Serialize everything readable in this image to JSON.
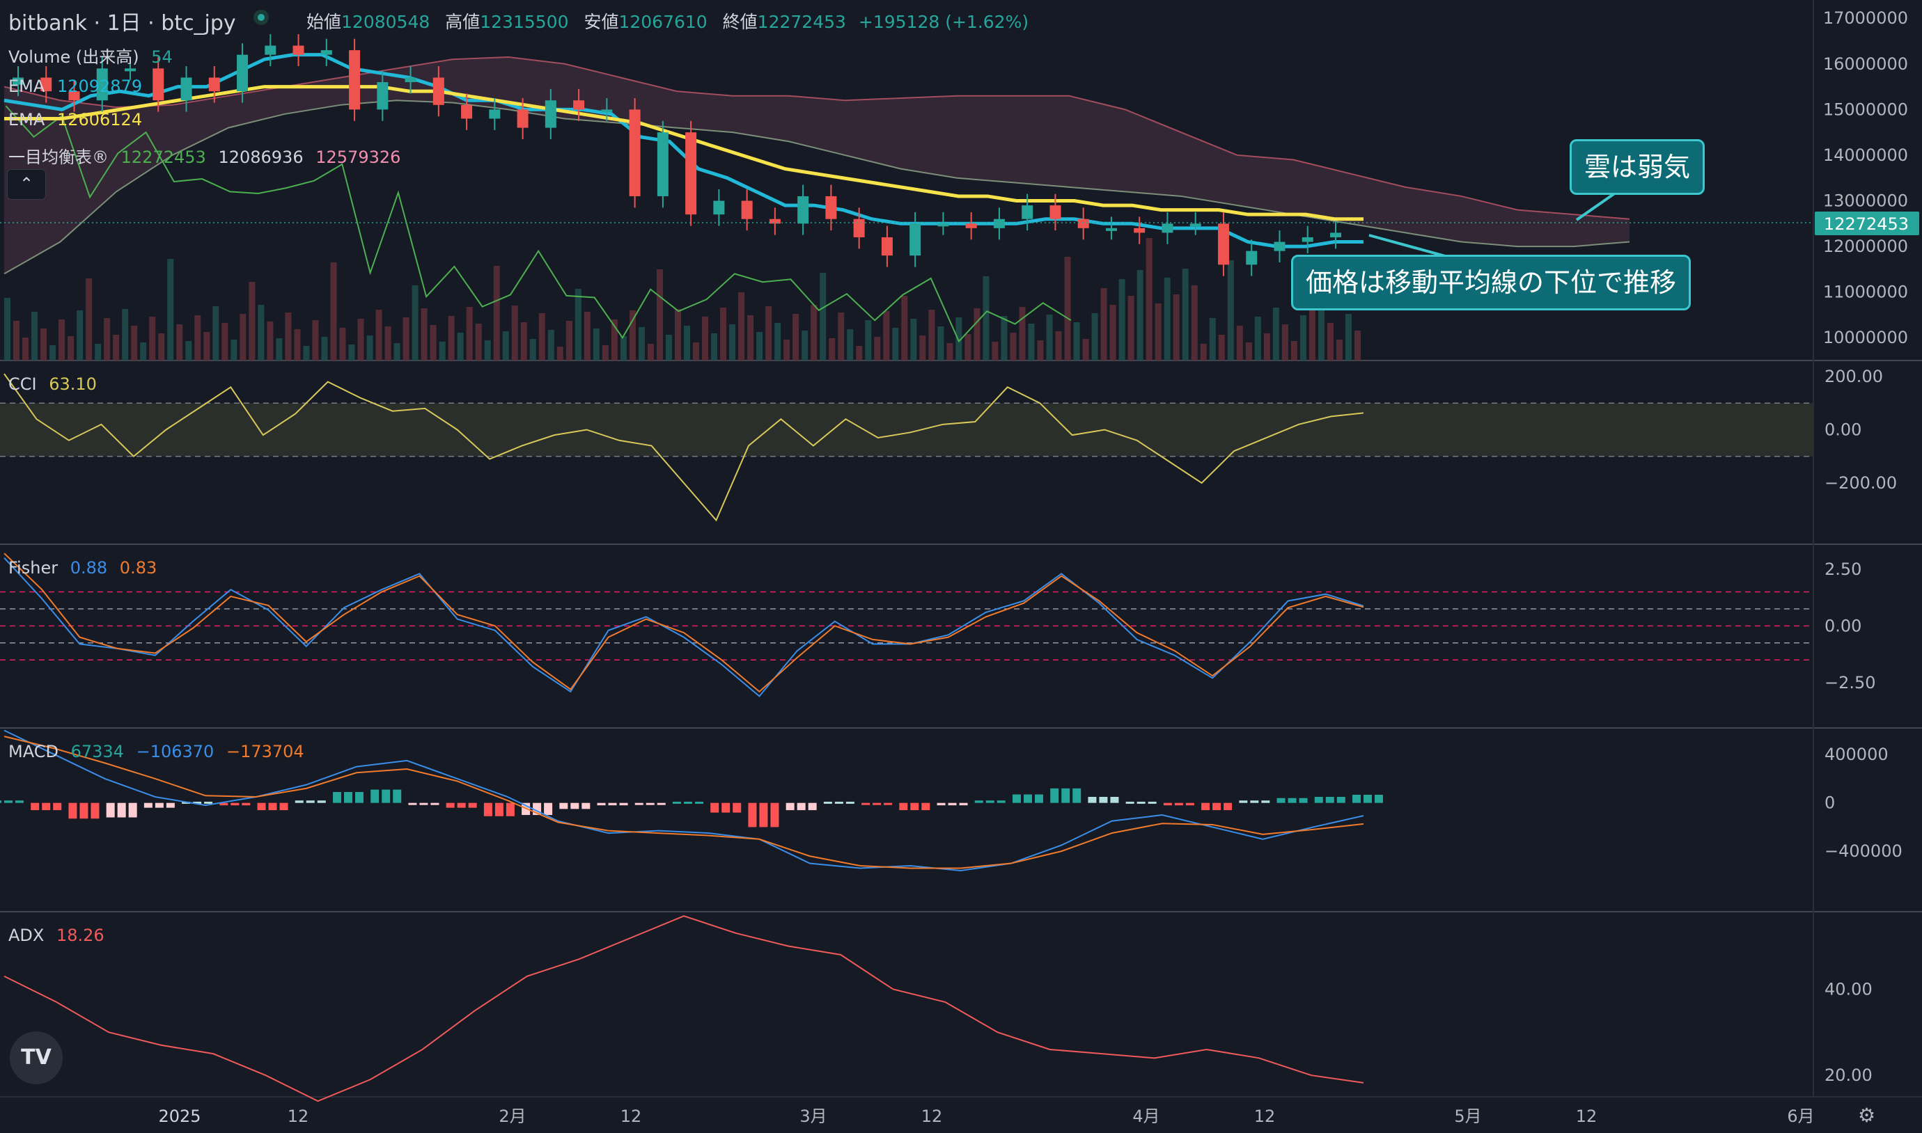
{
  "header": {
    "title": "bitbank · 1日 · btc_jpy",
    "open_label": "始値",
    "open": "12080548",
    "high_label": "高値",
    "high": "12315500",
    "low_label": "安値",
    "low": "12067610",
    "close_label": "終値",
    "close": "12272453",
    "change": "+195128 (+1.62%)"
  },
  "legend": {
    "volume": {
      "name": "Volume (出来高)",
      "value": "54"
    },
    "ema1": {
      "name": "EMA",
      "value": "12092879"
    },
    "ema2": {
      "name": "EMA",
      "value": "12606124"
    },
    "ichimoku": {
      "name": "一目均衡表®",
      "v1": "12272453",
      "v2": "12086936",
      "v3": "12579326"
    },
    "cci": {
      "name": "CCI",
      "value": "63.10"
    },
    "fisher": {
      "name": "Fisher",
      "v1": "0.88",
      "v2": "0.83"
    },
    "macd": {
      "name": "MACD",
      "v1": "67334",
      "v2": "−106370",
      "v3": "−173704"
    },
    "adx": {
      "name": "ADX",
      "value": "18.26"
    }
  },
  "annotations": {
    "cloud": "雲は弱気",
    "price": "価格は移動平均線の下位で推移"
  },
  "colors": {
    "background": "#161a25",
    "up": "#26a69a",
    "down": "#ef5350",
    "ema_fast": "#22b8d8",
    "ema_slow": "#f6e24b",
    "cci": "#d8c85a",
    "fisher": "#3b8ee8",
    "trigger": "#f07b2c",
    "adx": "#f05a5a",
    "callout": "#0d6b76"
  },
  "price_axis": {
    "ticks": [
      "17000000",
      "16000000",
      "15000000",
      "14000000",
      "13000000",
      "12000000",
      "11000000",
      "10000000"
    ],
    "current": "12272453"
  },
  "cci_axis": [
    "200.00",
    "0.00",
    "−200.00"
  ],
  "fisher_axis": [
    "2.50",
    "0.00",
    "−2.50"
  ],
  "macd_axis": [
    "400000",
    "0",
    "−400000"
  ],
  "adx_axis": [
    "40.00",
    "20.00"
  ],
  "time_axis": [
    "2025",
    "12",
    "2月",
    "12",
    "3月",
    "12",
    "4月",
    "12",
    "5月",
    "12",
    "6月"
  ],
  "chart_data": [
    {
      "type": "candlestick",
      "ylim": [
        9500000,
        17400000
      ],
      "series": [
        {
          "name": "Close",
          "values": [
            15700000,
            15400000,
            15200000,
            15900000,
            15900000,
            15200000,
            15700000,
            15400000,
            16200000,
            16400000,
            16200000,
            16300000,
            15000000,
            15600000,
            15700000,
            15100000,
            14800000,
            15000000,
            14600000,
            15200000,
            15000000,
            15000000,
            13100000,
            14500000,
            12700000,
            13000000,
            12600000,
            12500000,
            13100000,
            12600000,
            12200000,
            11800000,
            12500000,
            12500000,
            12400000,
            12600000,
            12900000,
            12600000,
            12400000,
            12400000,
            12300000,
            12500000,
            12500000,
            11600000,
            11900000,
            12100000,
            12200000,
            12300000
          ]
        },
        {
          "name": "EMA",
          "values": [
            15200000,
            15100000,
            15000000,
            15300000,
            15400000,
            15300000,
            15500000,
            15500000,
            15800000,
            16100000,
            16200000,
            16200000,
            15900000,
            15800000,
            15700000,
            15500000,
            15200000,
            15200000,
            15000000,
            15000000,
            15000000,
            14900000,
            14400000,
            14300000,
            13700000,
            13500000,
            13200000,
            12900000,
            12900000,
            12800000,
            12600000,
            12500000,
            12500000,
            12500000,
            12500000,
            12500000,
            12600000,
            12600000,
            12500000,
            12500000,
            12400000,
            12400000,
            12400000,
            12100000,
            12000000,
            12000000,
            12100000,
            12100000
          ]
        },
        {
          "name": "EMA",
          "values": [
            14800000,
            14800000,
            14800000,
            14900000,
            15000000,
            15100000,
            15200000,
            15300000,
            15400000,
            15500000,
            15500000,
            15500000,
            15500000,
            15500000,
            15400000,
            15400000,
            15300000,
            15200000,
            15100000,
            15000000,
            14900000,
            14800000,
            14700000,
            14500000,
            14300000,
            14100000,
            13900000,
            13700000,
            13600000,
            13500000,
            13400000,
            13300000,
            13200000,
            13100000,
            13100000,
            13000000,
            13000000,
            13000000,
            12900000,
            12900000,
            12800000,
            12800000,
            12800000,
            12700000,
            12700000,
            12700000,
            12600000,
            12600000
          ]
        }
      ]
    },
    {
      "type": "line",
      "ylim": [
        -430,
        260
      ],
      "series": [
        {
          "name": "CCI",
          "values": [
            210,
            40,
            -40,
            20,
            -100,
            0,
            80,
            160,
            -20,
            60,
            180,
            120,
            70,
            80,
            0,
            -110,
            -60,
            -20,
            0,
            -40,
            -60,
            -200,
            -340,
            -60,
            40,
            -60,
            40,
            -30,
            -10,
            20,
            30,
            160,
            100,
            -20,
            0,
            -40,
            -120,
            -200,
            -80,
            -30,
            20,
            50,
            63
          ]
        }
      ]
    },
    {
      "type": "line",
      "ylim": [
        -4.5,
        3.6
      ],
      "series": [
        {
          "name": "Fisher",
          "values": [
            3.0,
            1.2,
            -0.8,
            -1.0,
            -1.3,
            0.2,
            1.6,
            0.7,
            -0.9,
            0.8,
            1.6,
            2.3,
            0.3,
            -0.2,
            -1.8,
            -2.9,
            -0.2,
            0.4,
            -0.5,
            -1.7,
            -3.1,
            -1.1,
            0.2,
            -0.8,
            -0.8,
            -0.4,
            0.6,
            1.1,
            2.3,
            1.0,
            -0.6,
            -1.3,
            -2.3,
            -0.7,
            1.1,
            1.4,
            0.88
          ]
        },
        {
          "name": "Trigger",
          "values": [
            3.2,
            1.6,
            -0.5,
            -1.0,
            -1.2,
            -0.1,
            1.3,
            0.9,
            -0.7,
            0.5,
            1.5,
            2.2,
            0.5,
            0.0,
            -1.6,
            -2.8,
            -0.5,
            0.3,
            -0.3,
            -1.5,
            -2.9,
            -1.4,
            0.0,
            -0.6,
            -0.8,
            -0.5,
            0.4,
            1.0,
            2.2,
            1.1,
            -0.3,
            -1.1,
            -2.2,
            -0.9,
            0.8,
            1.3,
            0.83
          ]
        }
      ]
    },
    {
      "type": "bar",
      "ylim": [
        -900000,
        620000
      ],
      "series": [
        {
          "name": "Histogram",
          "values": [
            20000,
            -60000,
            -130000,
            -120000,
            -40000,
            10000,
            -20000,
            -60000,
            20000,
            90000,
            110000,
            -10000,
            -40000,
            -110000,
            -100000,
            -50000,
            -20000,
            -10000,
            10000,
            -80000,
            -200000,
            -60000,
            10000,
            -10000,
            -60000,
            -20000,
            20000,
            70000,
            120000,
            50000,
            10000,
            -20000,
            -60000,
            20000,
            40000,
            50000,
            67334
          ]
        },
        {
          "name": "MACD",
          "values": [
            600000,
            400000,
            200000,
            50000,
            -20000,
            50000,
            150000,
            300000,
            350000,
            200000,
            50000,
            -150000,
            -250000,
            -230000,
            -250000,
            -300000,
            -500000,
            -540000,
            -520000,
            -560000,
            -500000,
            -350000,
            -150000,
            -100000,
            -200000,
            -300000,
            -200000,
            -106370
          ]
        },
        {
          "name": "Signal",
          "values": [
            550000,
            450000,
            330000,
            200000,
            60000,
            50000,
            120000,
            250000,
            280000,
            180000,
            20000,
            -160000,
            -230000,
            -250000,
            -270000,
            -300000,
            -440000,
            -520000,
            -540000,
            -540000,
            -500000,
            -400000,
            -250000,
            -170000,
            -180000,
            -260000,
            -220000,
            -173704
          ]
        }
      ]
    },
    {
      "type": "line",
      "ylim": [
        15,
        58
      ],
      "series": [
        {
          "name": "ADX",
          "values": [
            43,
            37,
            30,
            27,
            25,
            20,
            14,
            19,
            26,
            35,
            43,
            47,
            52,
            57,
            53,
            50,
            48,
            40,
            37,
            30,
            26,
            25,
            24,
            26,
            24,
            20,
            18.26
          ]
        }
      ]
    }
  ]
}
